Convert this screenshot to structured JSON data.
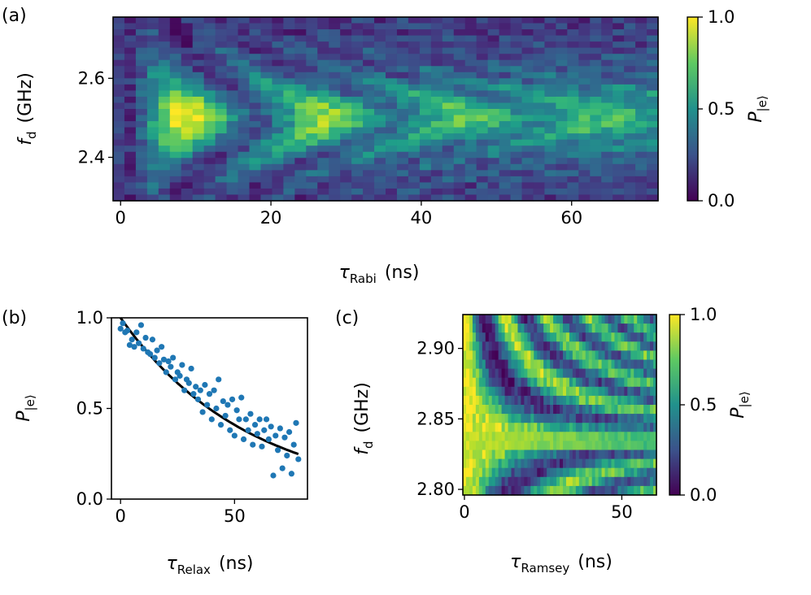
{
  "chart_data": [
    {
      "panel": "(a)",
      "type": "heatmap",
      "xlabel": "τ",
      "xlabel_sub": "Rabi",
      "xlabel_unit": "(ns)",
      "ylabel": "f",
      "ylabel_sub": "d",
      "ylabel_unit": "(GHz)",
      "xlim": [
        -1,
        71.5
      ],
      "ylim": [
        2.29,
        2.755
      ],
      "x_ticks": [
        0,
        20,
        40,
        60
      ],
      "x_tick_labels": [
        "0",
        "20",
        "40",
        "60"
      ],
      "y_ticks": [
        2.4,
        2.6
      ],
      "y_tick_labels": [
        "2.4",
        "2.6"
      ],
      "n_cols": 48,
      "n_rows": 30,
      "center_freq": 2.5,
      "rabi_period_ns": 9.3,
      "decay_ns": 40,
      "colormap": "viridis",
      "colorbar": {
        "label": "P",
        "label_sub": "|e⟩",
        "ticks": [
          0.0,
          0.5,
          1.0
        ],
        "tick_labels": [
          "0.0",
          "0.5",
          "1.0"
        ]
      }
    },
    {
      "panel": "(b)",
      "type": "scatter",
      "xlabel": "τ",
      "xlabel_sub": "Relax",
      "xlabel_unit": "(ns)",
      "ylabel": "P",
      "ylabel_sub": "|e⟩",
      "xlim": [
        -4,
        82
      ],
      "ylim": [
        0.0,
        1.0
      ],
      "x_ticks": [
        0,
        50
      ],
      "x_tick_labels": [
        "0",
        "50"
      ],
      "y_ticks": [
        0.0,
        0.5,
        1.0
      ],
      "y_tick_labels": [
        "0.0",
        "0.5",
        "1.0"
      ],
      "point_color": "#1f77b4",
      "fit_color": "#000000",
      "fit": {
        "model": "exp",
        "amplitude": 1.0,
        "T1_ns": 56
      },
      "points": [
        [
          0,
          0.94
        ],
        [
          1,
          0.97
        ],
        [
          2,
          0.92
        ],
        [
          3,
          0.93
        ],
        [
          4,
          0.85
        ],
        [
          5,
          0.88
        ],
        [
          6,
          0.84
        ],
        [
          7,
          0.92
        ],
        [
          8,
          0.86
        ],
        [
          9,
          0.96
        ],
        [
          10,
          0.83
        ],
        [
          11,
          0.89
        ],
        [
          12,
          0.81
        ],
        [
          13,
          0.8
        ],
        [
          14,
          0.88
        ],
        [
          15,
          0.78
        ],
        [
          16,
          0.82
        ],
        [
          17,
          0.75
        ],
        [
          18,
          0.84
        ],
        [
          19,
          0.77
        ],
        [
          20,
          0.7
        ],
        [
          21,
          0.76
        ],
        [
          22,
          0.73
        ],
        [
          23,
          0.78
        ],
        [
          24,
          0.66
        ],
        [
          25,
          0.7
        ],
        [
          26,
          0.68
        ],
        [
          27,
          0.74
        ],
        [
          28,
          0.6
        ],
        [
          29,
          0.66
        ],
        [
          30,
          0.64
        ],
        [
          31,
          0.72
        ],
        [
          32,
          0.58
        ],
        [
          33,
          0.62
        ],
        [
          34,
          0.55
        ],
        [
          35,
          0.6
        ],
        [
          36,
          0.48
        ],
        [
          37,
          0.63
        ],
        [
          38,
          0.52
        ],
        [
          39,
          0.58
        ],
        [
          40,
          0.44
        ],
        [
          41,
          0.6
        ],
        [
          42,
          0.5
        ],
        [
          43,
          0.66
        ],
        [
          44,
          0.41
        ],
        [
          45,
          0.54
        ],
        [
          46,
          0.46
        ],
        [
          47,
          0.52
        ],
        [
          48,
          0.38
        ],
        [
          49,
          0.55
        ],
        [
          50,
          0.35
        ],
        [
          51,
          0.49
        ],
        [
          52,
          0.44
        ],
        [
          53,
          0.56
        ],
        [
          54,
          0.33
        ],
        [
          55,
          0.44
        ],
        [
          56,
          0.38
        ],
        [
          57,
          0.47
        ],
        [
          58,
          0.3
        ],
        [
          59,
          0.41
        ],
        [
          60,
          0.36
        ],
        [
          61,
          0.44
        ],
        [
          62,
          0.29
        ],
        [
          63,
          0.38
        ],
        [
          64,
          0.44
        ],
        [
          65,
          0.33
        ],
        [
          66,
          0.4
        ],
        [
          67,
          0.13
        ],
        [
          68,
          0.35
        ],
        [
          69,
          0.27
        ],
        [
          70,
          0.39
        ],
        [
          71,
          0.17
        ],
        [
          72,
          0.34
        ],
        [
          73,
          0.24
        ],
        [
          74,
          0.37
        ],
        [
          75,
          0.14
        ],
        [
          76,
          0.3
        ],
        [
          77,
          0.42
        ],
        [
          78,
          0.22
        ]
      ]
    },
    {
      "panel": "(c)",
      "type": "heatmap",
      "xlabel": "τ",
      "xlabel_sub": "Ramsey",
      "xlabel_unit": "(ns)",
      "ylabel": "f",
      "ylabel_sub": "d",
      "ylabel_unit": "(GHz)",
      "xlim": [
        -0.5,
        61
      ],
      "ylim": [
        2.796,
        2.924
      ],
      "x_ticks": [
        0,
        50
      ],
      "x_tick_labels": [
        "0",
        "50"
      ],
      "y_ticks": [
        2.8,
        2.85,
        2.9
      ],
      "y_tick_labels": [
        "2.80",
        "2.85",
        "2.90"
      ],
      "n_cols": 60,
      "n_rows": 20,
      "center_freq": 2.837,
      "colormap": "viridis",
      "colorbar": {
        "label": "P",
        "label_sub": "|e⟩",
        "ticks": [
          0.0,
          0.5,
          1.0
        ],
        "tick_labels": [
          "0.0",
          "0.5",
          "1.0"
        ]
      }
    }
  ],
  "panel_labels": [
    "(a)",
    "(b)",
    "(c)"
  ]
}
